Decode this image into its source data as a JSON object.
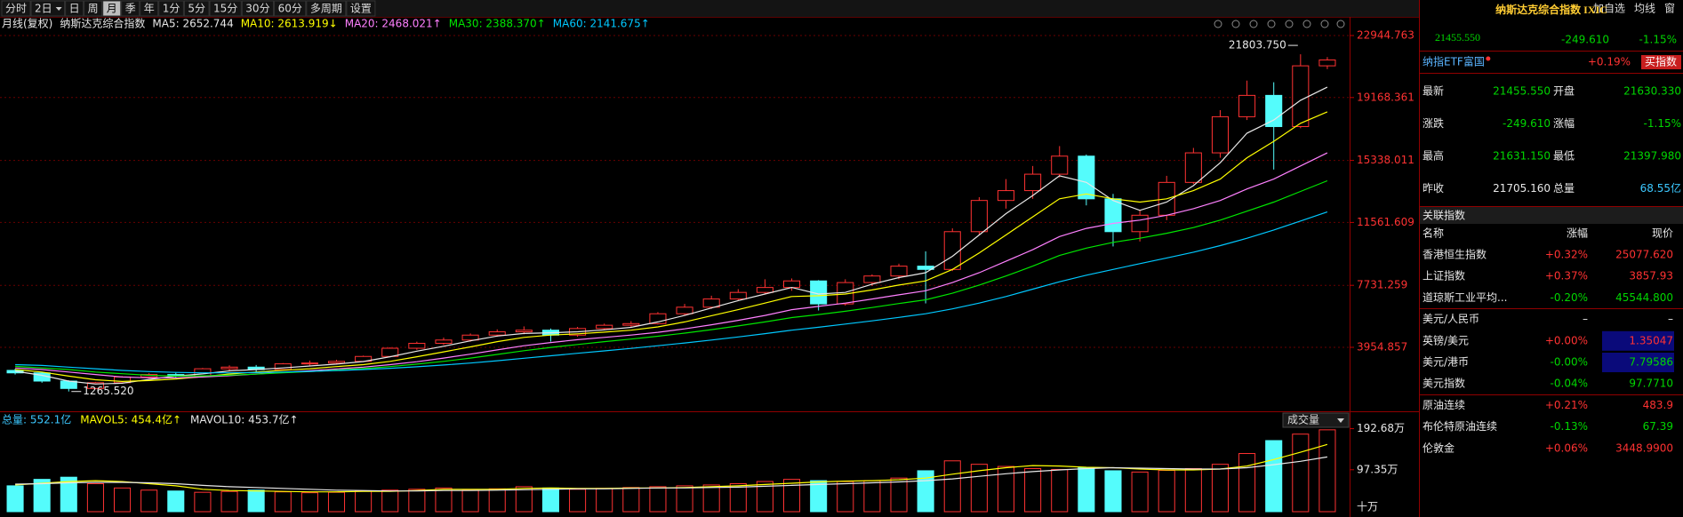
{
  "toolbar": {
    "periods": [
      "分时",
      "2日",
      "日",
      "周",
      "月",
      "季",
      "年",
      "1分",
      "5分",
      "15分",
      "30分",
      "60分",
      "多周期",
      "设置"
    ],
    "selected": 4,
    "actions": [
      "加自选",
      "均线",
      "窗"
    ]
  },
  "chart_data": [
    {
      "type": "candlestick",
      "period_label": "月线(复权)",
      "title": "纳斯达克综合指数",
      "open": [
        2550,
        2400,
        1900,
        1450,
        1800,
        2150,
        2300,
        2200,
        2650,
        2750,
        2600,
        2950,
        3000,
        3100,
        3400,
        3900,
        4200,
        4400,
        4700,
        4900,
        5000,
        4700,
        5100,
        5300,
        5400,
        6000,
        6400,
        6900,
        7300,
        7600,
        8000,
        6600,
        7900,
        8300,
        8900,
        8700,
        11000,
        12900,
        13500,
        14500,
        15600,
        13000,
        11000,
        12000,
        14000,
        15800,
        18000,
        19300,
        17400,
        21100
      ],
      "high": [
        2650,
        2450,
        1950,
        1850,
        2200,
        2380,
        2400,
        2700,
        2860,
        2880,
        3000,
        3150,
        3200,
        3450,
        3950,
        4300,
        4550,
        4800,
        5050,
        5230,
        5100,
        5200,
        5400,
        5550,
        6100,
        6600,
        7100,
        7500,
        8100,
        8150,
        8050,
        8100,
        8400,
        9050,
        9800,
        11200,
        13100,
        14200,
        15000,
        16212,
        15700,
        13300,
        12300,
        14400,
        16100,
        18400,
        20200,
        20100,
        21803.75,
        21631.15
      ],
      "low": [
        2300,
        1800,
        1265.52,
        1400,
        1750,
        2050,
        2100,
        2150,
        2550,
        2450,
        2550,
        2850,
        2900,
        3050,
        3350,
        3800,
        4100,
        4300,
        4600,
        4750,
        4300,
        4600,
        5000,
        5200,
        5350,
        5900,
        6300,
        6800,
        7200,
        7400,
        6200,
        6500,
        7700,
        8100,
        6630,
        8600,
        10800,
        12400,
        13000,
        14300,
        12600,
        10100,
        10400,
        11700,
        13900,
        15500,
        17800,
        14784,
        17300,
        20900
      ],
      "close": [
        2400,
        1900,
        1450,
        1800,
        2150,
        2300,
        2200,
        2650,
        2750,
        2600,
        2950,
        3000,
        3100,
        3400,
        3900,
        4200,
        4400,
        4700,
        4900,
        5000,
        4700,
        5100,
        5300,
        5400,
        6000,
        6400,
        6900,
        7300,
        7600,
        8000,
        6600,
        7900,
        8300,
        8900,
        8700,
        11000,
        12900,
        13500,
        14500,
        15600,
        13000,
        11000,
        12000,
        14000,
        15800,
        18000,
        19300,
        17400,
        21100,
        21455.55
      ],
      "up_color": "#ff3232",
      "down_color": "#54fcfc",
      "max_label": "21803.750",
      "min_label": "1265.520",
      "ylim": [
        114,
        23161
      ],
      "yticks": [
        3954.857,
        7731.259,
        11561.609,
        15338.011,
        19168.361,
        22944.763
      ],
      "grid": true,
      "series": [
        {
          "legend": "MA5: 2652.744",
          "color": "#e8e8e8",
          "values": [
            2500,
            2250,
            1900,
            1720,
            1770,
            2000,
            2200,
            2340,
            2520,
            2600,
            2700,
            2820,
            2930,
            3090,
            3380,
            3720,
            4020,
            4350,
            4640,
            4800,
            4840,
            4900,
            5020,
            5170,
            5500,
            5900,
            6350,
            6800,
            7200,
            7600,
            7200,
            7300,
            7800,
            8200,
            8500,
            9500,
            10800,
            12100,
            13200,
            14400,
            14000,
            12900,
            12300,
            12800,
            13800,
            15200,
            17000,
            17800,
            19000,
            19800
          ]
        },
        {
          "legend": "MA10: 2613.919↓",
          "color": "#ffff00",
          "values": [
            2600,
            2450,
            2200,
            1980,
            1880,
            1930,
            2030,
            2170,
            2330,
            2450,
            2560,
            2650,
            2780,
            2900,
            3100,
            3380,
            3680,
            3980,
            4300,
            4560,
            4700,
            4780,
            4880,
            5000,
            5200,
            5500,
            5880,
            6250,
            6650,
            7050,
            7100,
            7200,
            7450,
            7750,
            8000,
            8700,
            9700,
            10800,
            11900,
            13000,
            13300,
            13000,
            12800,
            13000,
            13500,
            14200,
            15500,
            16500,
            17600,
            18300
          ]
        },
        {
          "legend": "MA20: 2468.021↑",
          "color": "#ff80ff",
          "values": [
            2700,
            2600,
            2450,
            2300,
            2150,
            2100,
            2100,
            2150,
            2230,
            2330,
            2430,
            2530,
            2640,
            2750,
            2900,
            3080,
            3300,
            3540,
            3800,
            4050,
            4250,
            4420,
            4560,
            4700,
            4870,
            5080,
            5330,
            5600,
            5900,
            6250,
            6450,
            6650,
            6900,
            7150,
            7400,
            7900,
            8500,
            9200,
            9900,
            10700,
            11200,
            11500,
            11700,
            12000,
            12400,
            12900,
            13600,
            14200,
            15000,
            15800
          ]
        },
        {
          "legend": "MA30: 2388.370↑",
          "color": "#00e600",
          "values": [
            2800,
            2700,
            2600,
            2450,
            2350,
            2250,
            2200,
            2220,
            2260,
            2320,
            2400,
            2480,
            2570,
            2660,
            2780,
            2930,
            3100,
            3300,
            3520,
            3750,
            3950,
            4130,
            4300,
            4460,
            4630,
            4820,
            5030,
            5260,
            5500,
            5770,
            5950,
            6150,
            6380,
            6620,
            6850,
            7250,
            7750,
            8300,
            8900,
            9550,
            10000,
            10350,
            10600,
            10900,
            11250,
            11700,
            12250,
            12800,
            13450,
            14100
          ]
        },
        {
          "legend": "MA60: 2141.675↑",
          "color": "#00c8ff",
          "values": [
            2900,
            2850,
            2750,
            2650,
            2550,
            2480,
            2430,
            2400,
            2400,
            2420,
            2450,
            2490,
            2540,
            2600,
            2680,
            2770,
            2880,
            3000,
            3140,
            3290,
            3440,
            3590,
            3740,
            3890,
            4050,
            4220,
            4400,
            4590,
            4790,
            5000,
            5180,
            5370,
            5570,
            5780,
            6000,
            6300,
            6650,
            7050,
            7500,
            7950,
            8350,
            8700,
            9050,
            9400,
            9750,
            10150,
            10600,
            11100,
            11650,
            12200
          ]
        }
      ]
    },
    {
      "type": "bar",
      "total_legend": "总量: 552.1亿",
      "selector": "成交量",
      "unit": "十万",
      "values": [
        60,
        75,
        80,
        65,
        55,
        50,
        48,
        45,
        47,
        50,
        46,
        44,
        45,
        48,
        50,
        52,
        55,
        50,
        53,
        58,
        55,
        52,
        54,
        56,
        58,
        60,
        62,
        65,
        70,
        75,
        72,
        70,
        72,
        78,
        95,
        118,
        110,
        105,
        100,
        98,
        102,
        95,
        92,
        96,
        100,
        110,
        135,
        165,
        180,
        190
      ],
      "ylim": [
        0,
        233
      ],
      "yticks": [
        {
          "value": 97.35,
          "label": "97.35万"
        },
        {
          "value": 192.68,
          "label": "192.68万"
        }
      ],
      "series": [
        {
          "legend": "MAVOL5: 454.4亿↑",
          "color": "#ffff00",
          "values": [
            62,
            66,
            70,
            72,
            70,
            65,
            60,
            52,
            49,
            48,
            47,
            46,
            46,
            47,
            47,
            49,
            52,
            52,
            52,
            54,
            55,
            54,
            54,
            55,
            55,
            56,
            58,
            60,
            63,
            66,
            69,
            71,
            72,
            74,
            78,
            87,
            95,
            102,
            107,
            106,
            103,
            102,
            99,
            97,
            97,
            99,
            106,
            121,
            138,
            156
          ]
        },
        {
          "legend": "MAVOL10: 453.7亿↑",
          "color": "#e8e8e8",
          "values": [
            64,
            65,
            67,
            68,
            68,
            67,
            65,
            61,
            58,
            56,
            54,
            52,
            50,
            49,
            48,
            48,
            49,
            49,
            50,
            51,
            52,
            53,
            53,
            54,
            55,
            55,
            56,
            57,
            59,
            61,
            63,
            65,
            67,
            69,
            72,
            76,
            82,
            88,
            93,
            97,
            100,
            102,
            101,
            100,
            99,
            99,
            102,
            109,
            117,
            127
          ]
        }
      ]
    }
  ],
  "quote": {
    "title": "纳斯达克综合指数 IXIC",
    "price": "21455.550",
    "change": "-249.610",
    "pct": "-1.15%",
    "color": "#00d600",
    "etf_name": "纳指ETF富国",
    "etf_pct": "+0.19%",
    "etf_color": "#ff3232",
    "button": "买指数",
    "rows": [
      {
        "label1": "最新",
        "value1": "21455.550",
        "color1": "#00d600",
        "label2": "开盘",
        "value2": "21630.330",
        "color2": "#00d600"
      },
      {
        "label1": "涨跌",
        "value1": "-249.610",
        "color1": "#00d600",
        "label2": "涨幅",
        "value2": "-1.15%",
        "color2": "#00d600"
      },
      {
        "label1": "最高",
        "value1": "21631.150",
        "color1": "#00d600",
        "label2": "最低",
        "value2": "21397.980",
        "color2": "#00d600"
      },
      {
        "label1": "昨收",
        "value1": "21705.160",
        "color1": "#e8e8e8",
        "label2": "总量",
        "value2": "68.55亿",
        "color2": "#3cc8ff"
      }
    ]
  },
  "related": {
    "title": "关联指数",
    "columns": [
      "名称",
      "涨幅",
      "现价"
    ],
    "rows": [
      {
        "name": "香港恒生指数",
        "change": "+0.32%",
        "price": "25077.620",
        "color": "#ff3232",
        "highlight": false
      },
      {
        "name": "上证指数",
        "change": "+0.37%",
        "price": "3857.93",
        "color": "#ff3232",
        "highlight": false
      },
      {
        "name": "道琼斯工业平均...",
        "change": "-0.20%",
        "price": "45544.800",
        "color": "#00d600",
        "highlight": false
      },
      {
        "name": "美元/人民币",
        "change": "–",
        "price": "–",
        "color": "#e8e8e8",
        "highlight": false
      },
      {
        "name": "英镑/美元",
        "change": "+0.00%",
        "price": "1.35047",
        "color": "#ff3232",
        "highlight": true
      },
      {
        "name": "美元/港币",
        "change": "-0.00%",
        "price": "7.79586",
        "color": "#00d600",
        "highlight": true
      },
      {
        "name": "美元指数",
        "change": "-0.04%",
        "price": "97.7710",
        "color": "#00d600",
        "highlight": false
      },
      {
        "name": "原油连续",
        "change": "+0.21%",
        "price": "483.9",
        "color": "#ff3232",
        "highlight": false
      },
      {
        "name": "布伦特原油连续",
        "change": "-0.13%",
        "price": "67.39",
        "color": "#00d600",
        "highlight": false
      },
      {
        "name": "伦敦金",
        "change": "+0.06%",
        "price": "3448.9900",
        "color": "#ff3232",
        "highlight": false
      }
    ]
  }
}
